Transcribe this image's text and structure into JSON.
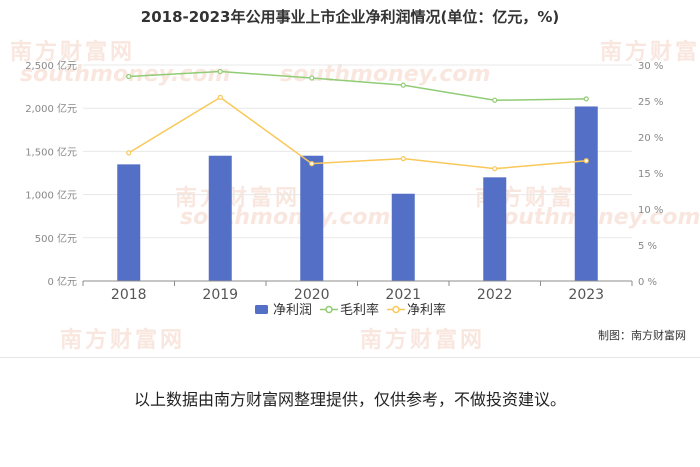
{
  "chart": {
    "title": "2018-2023年公用事业上市企业净利润情况(单位：亿元，%)",
    "credit": "制图：南方财富网"
  },
  "watermark": {
    "cn": "南方财富网",
    "en": "southmoney.com"
  },
  "footer": {
    "note": "以上数据由南方财富网整理提供，仅供参考，不做投资建议。"
  },
  "chart_data": {
    "type": "bar",
    "title": "2018-2023年公用事业上市企业净利润情况(单位：亿元，%)",
    "categories": [
      "2018",
      "2019",
      "2020",
      "2021",
      "2022",
      "2023"
    ],
    "series": [
      {
        "name": "净利润",
        "type": "bar",
        "axis": "left",
        "color": "#5470c6",
        "values": [
          1350,
          1450,
          1450,
          1010,
          1200,
          2020
        ]
      },
      {
        "name": "毛利率",
        "type": "line",
        "axis": "right",
        "color": "#91cc75",
        "values": [
          28.4,
          29.1,
          28.2,
          27.2,
          25.1,
          25.3
        ]
      },
      {
        "name": "净利率",
        "type": "line",
        "axis": "right",
        "color": "#fac858",
        "values": [
          17.8,
          25.5,
          16.3,
          17.0,
          15.6,
          16.7
        ]
      }
    ],
    "y_left": {
      "min": 0,
      "max": 2500,
      "ticks": [
        0,
        500,
        1000,
        1500,
        2000,
        2500
      ],
      "unit": " 亿元"
    },
    "y_right": {
      "min": 0,
      "max": 30,
      "ticks": [
        0,
        5,
        10,
        15,
        20,
        25,
        30
      ],
      "unit": " %"
    },
    "grid": true,
    "legend": "bottom-center"
  }
}
